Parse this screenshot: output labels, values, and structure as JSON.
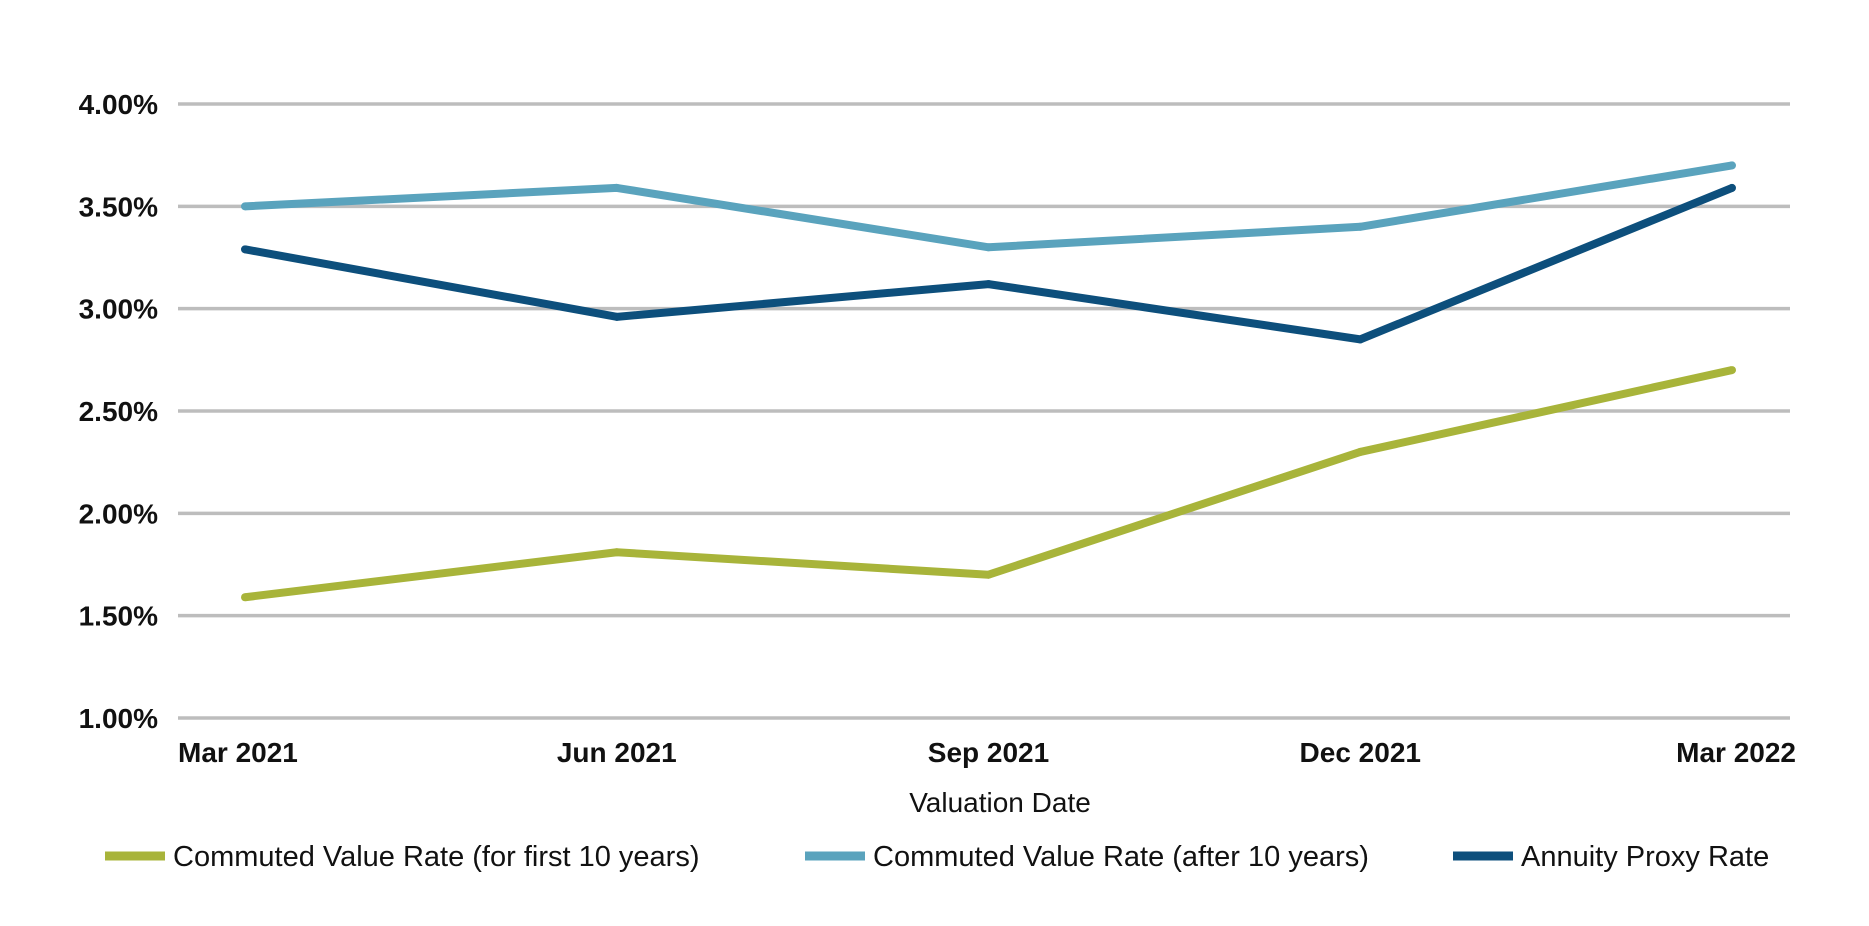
{
  "chart_data": {
    "type": "line",
    "title": "",
    "xlabel": "Valuation Date",
    "ylabel": "",
    "categories": [
      "Mar 2021",
      "Jun 2021",
      "Sep 2021",
      "Dec 2021",
      "Mar 2022"
    ],
    "y_ticks": [
      "1.00%",
      "1.50%",
      "2.00%",
      "2.50%",
      "3.00%",
      "3.50%",
      "4.00%"
    ],
    "ylim": [
      1.0,
      4.0
    ],
    "y_unit": "%",
    "grid": "horizontal",
    "legend_position": "bottom",
    "series": [
      {
        "name": "Commuted Value Rate (for first 10 years)",
        "color": "#a8b43a",
        "values": [
          1.59,
          1.81,
          1.7,
          2.3,
          2.7
        ]
      },
      {
        "name": "Commuted Value Rate (after 10 years)",
        "color": "#5aa3bd",
        "values": [
          3.5,
          3.59,
          3.3,
          3.4,
          3.7
        ]
      },
      {
        "name": "Annuity Proxy Rate",
        "color": "#0d4f7c",
        "values": [
          3.29,
          2.96,
          3.12,
          2.85,
          3.59
        ]
      }
    ]
  }
}
